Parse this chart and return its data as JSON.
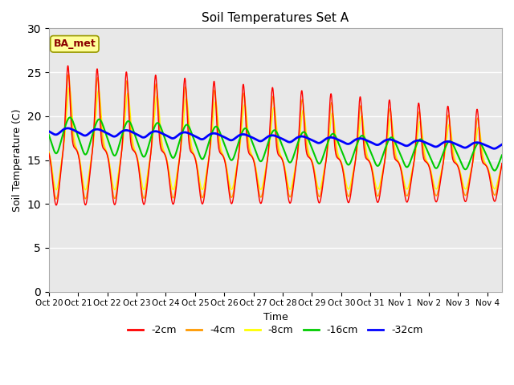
{
  "title": "Soil Temperatures Set A",
  "xlabel": "Time",
  "ylabel": "Soil Temperature (C)",
  "ylim": [
    0,
    30
  ],
  "yticks": [
    0,
    5,
    10,
    15,
    20,
    25,
    30
  ],
  "bg_color": "#e8e8e8",
  "legend_label": "BA_met",
  "line_colors": {
    "-2cm": "#ff0000",
    "-4cm": "#ff9900",
    "-8cm": "#ffff00",
    "-16cm": "#00cc00",
    "-32cm": "#0000ff"
  },
  "x_tick_labels": [
    "Oct 20",
    "Oct 21",
    "Oct 22",
    "Oct 23",
    "Oct 24",
    "Oct 25",
    "Oct 26",
    "Oct 27",
    "Oct 28",
    "Oct 29",
    "Oct 30",
    "Oct 31",
    "Nov 1",
    "Nov 2",
    "Nov 3",
    "Nov 4"
  ],
  "n_days": 15.5,
  "figsize": [
    6.4,
    4.8
  ],
  "dpi": 100
}
